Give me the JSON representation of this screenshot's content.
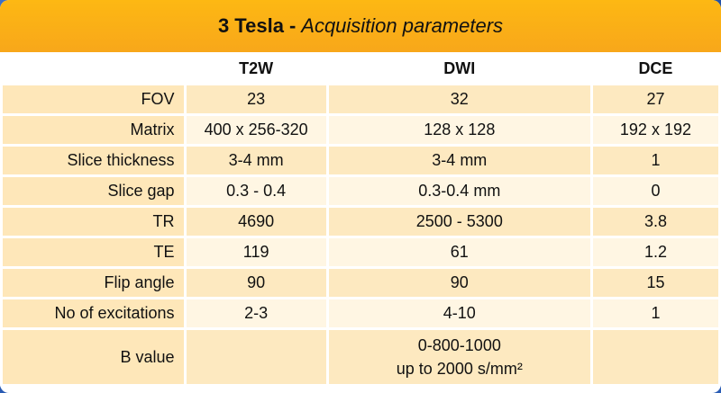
{
  "title": {
    "bold": "3 Tesla",
    "separator": "-",
    "italic": "Acquisition parameters"
  },
  "columns": [
    "",
    "T2W",
    "DWI",
    "DCE"
  ],
  "rows": [
    {
      "label": "FOV",
      "t2w": "23",
      "dwi": "32",
      "dce": "27"
    },
    {
      "label": "Matrix",
      "t2w": "400 x 256-320",
      "dwi": "128 x 128",
      "dce": "192 x 192"
    },
    {
      "label": "Slice thickness",
      "t2w": "3-4 mm",
      "dwi": "3-4 mm",
      "dce": "1"
    },
    {
      "label": "Slice gap",
      "t2w": "0.3 - 0.4",
      "dwi": "0.3-0.4 mm",
      "dce": "0"
    },
    {
      "label": "TR",
      "t2w": "4690",
      "dwi": "2500 - 5300",
      "dce": "3.8"
    },
    {
      "label": "TE",
      "t2w": "119",
      "dwi": "61",
      "dce": "1.2"
    },
    {
      "label": "Flip angle",
      "t2w": "90",
      "dwi": "90",
      "dce": "15"
    },
    {
      "label": "No of excitations",
      "t2w": "2-3",
      "dwi": "4-10",
      "dce": "1"
    },
    {
      "label": "B value",
      "t2w": "",
      "dwi_line1": "0-800-1000",
      "dwi_line2": "up to 2000 s/mm²",
      "dce": ""
    }
  ],
  "colors": {
    "title_bar": "#fdb813",
    "label_cell": "#fee7b9",
    "row_shade_dark": "#fde9c0",
    "row_shade_light": "#fff6e3",
    "background": "#2a5fb8"
  }
}
